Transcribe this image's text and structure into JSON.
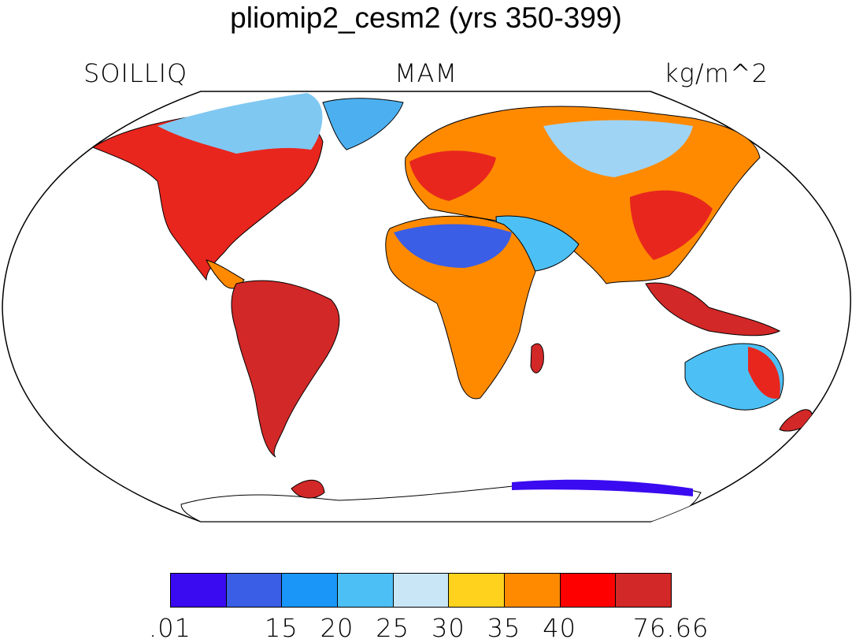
{
  "title": "pliomip2_cesm2 (yrs 350-399)",
  "variable": "SOILLIQ",
  "season": "MAM",
  "units": "kg/m^2",
  "colorbar": {
    "colors": [
      "#3a0af0",
      "#3a5ee6",
      "#1a96f8",
      "#4cc0f5",
      "#c8e6f6",
      "#ffd21e",
      "#ff8a00",
      "#ff0000",
      "#d22828"
    ],
    "labels": [
      ".01",
      "15",
      "20",
      "25",
      "30",
      "35",
      "40",
      "76.66"
    ]
  }
}
